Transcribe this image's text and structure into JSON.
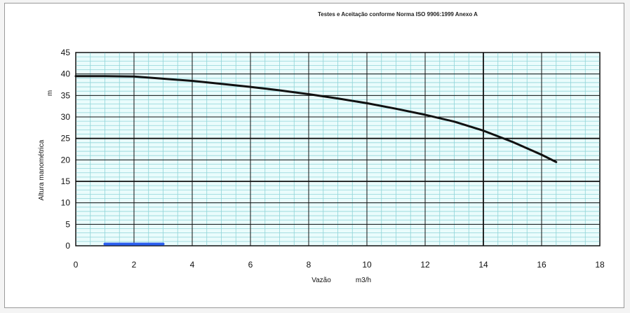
{
  "chart_data": {
    "type": "line",
    "title": "Testes e Aceitação conforme Norma ISO 9906:1999 Anexo A",
    "xlabel": "Vazão",
    "xunit": "m3/h",
    "ylabel": "Altura manométrica",
    "yunit": "m",
    "xlim": [
      0,
      18
    ],
    "ylim": [
      0,
      45
    ],
    "x_ticks": [
      0,
      2,
      4,
      6,
      8,
      10,
      12,
      14,
      16,
      18
    ],
    "y_ticks": [
      0,
      5,
      10,
      15,
      20,
      25,
      30,
      35,
      40,
      45
    ],
    "grid": true,
    "grid_color": "#8fd4d8",
    "plot_background": "#eafcfc",
    "series": [
      {
        "color": "#111111",
        "x": [
          0,
          1,
          2,
          3,
          4,
          5,
          6,
          7,
          8,
          9,
          10,
          11,
          12,
          13,
          14,
          15,
          16,
          16.5
        ],
        "y": [
          39.5,
          39.5,
          39.4,
          38.9,
          38.4,
          37.7,
          37.0,
          36.2,
          35.3,
          34.3,
          33.2,
          31.9,
          30.5,
          28.9,
          26.8,
          24.2,
          21.2,
          19.5
        ]
      },
      {
        "color": "#2b5ff0",
        "x": [
          1,
          3
        ],
        "y": [
          0.4,
          0.4
        ]
      }
    ]
  }
}
